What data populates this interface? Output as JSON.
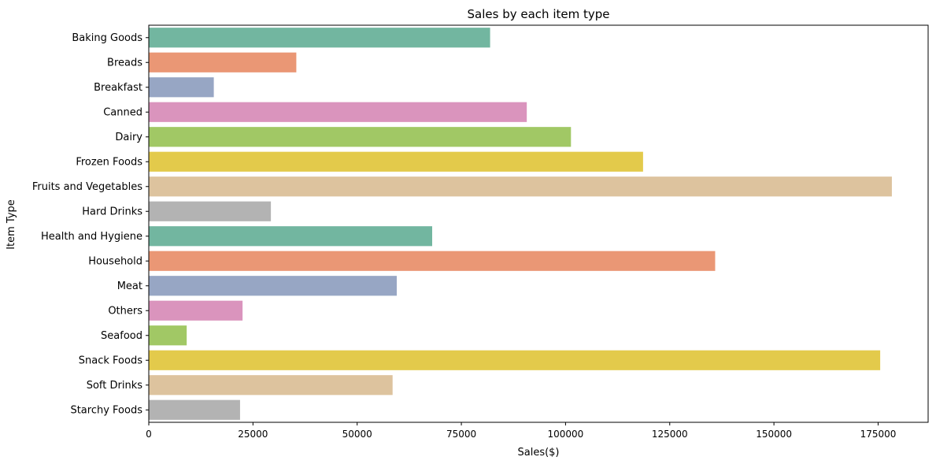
{
  "chart_data": {
    "type": "bar",
    "orientation": "horizontal",
    "title": "Sales by each item type",
    "xlabel": "Sales($)",
    "ylabel": "Item Type",
    "xlim": [
      0,
      187000
    ],
    "xticks": [
      0,
      25000,
      50000,
      75000,
      100000,
      125000,
      150000,
      175000
    ],
    "grid": false,
    "categories": [
      "Baking Goods",
      "Breads",
      "Breakfast",
      "Canned",
      "Dairy",
      "Frozen Foods",
      "Fruits and Vegetables",
      "Hard Drinks",
      "Health and Hygiene",
      "Household",
      "Meat",
      "Others",
      "Seafood",
      "Snack Foods",
      "Soft Drinks",
      "Starchy Foods"
    ],
    "values": [
      81900,
      35400,
      15600,
      90700,
      101300,
      118600,
      178300,
      29300,
      68000,
      135900,
      59500,
      22500,
      9100,
      175500,
      58500,
      21900
    ],
    "colors": [
      "#72b6a0",
      "#ea9775",
      "#97a6c4",
      "#da94bd",
      "#a1c865",
      "#e3ca4b",
      "#ddc39e",
      "#b3b3b3",
      "#72b6a0",
      "#ea9775",
      "#97a6c4",
      "#da94bd",
      "#a1c865",
      "#e3ca4b",
      "#ddc39e",
      "#b3b3b3"
    ]
  }
}
